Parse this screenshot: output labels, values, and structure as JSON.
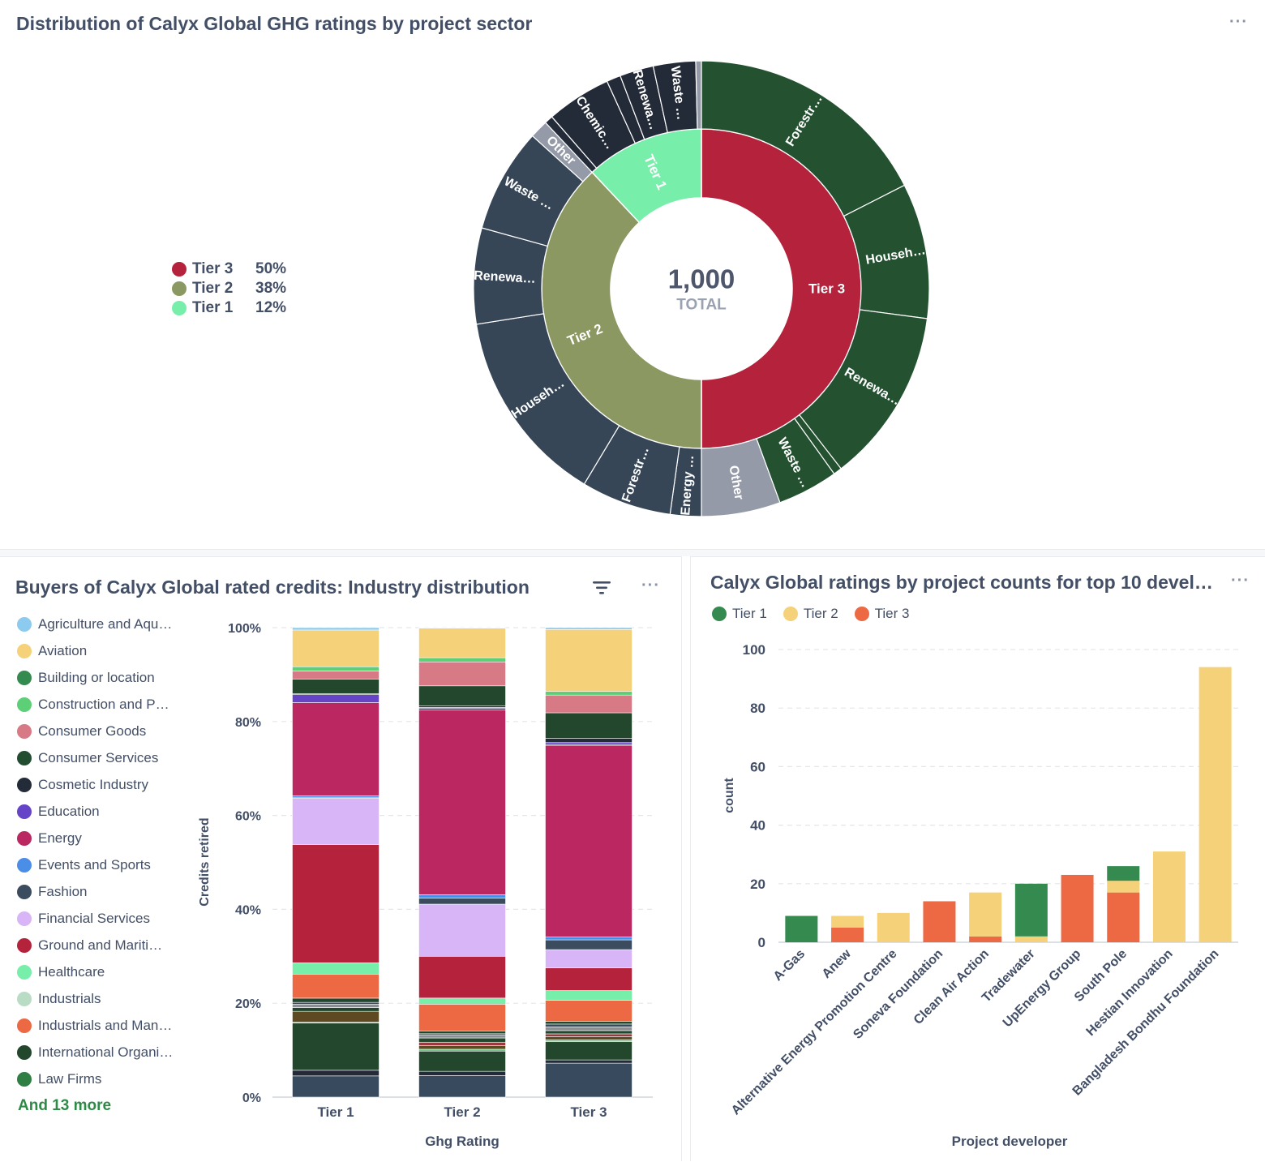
{
  "top": {
    "title": "Distribution of Calyx Global GHG ratings by project sector",
    "menu": "···",
    "legend": [
      {
        "label": "Tier 3",
        "pct": "50%",
        "color": "#b5223c"
      },
      {
        "label": "Tier 2",
        "pct": "38%",
        "color": "#8c9862"
      },
      {
        "label": "Tier 1",
        "pct": "12%",
        "color": "#78eeab"
      }
    ]
  },
  "bottom_left": {
    "title": "Buyers of Calyx Global rated credits: Industry distribution",
    "filter_icon": "filter-icon",
    "menu": "···",
    "legend": [
      {
        "label": "Agriculture and Aqu…",
        "color": "#8ccbef"
      },
      {
        "label": "Aviation",
        "color": "#f5d279"
      },
      {
        "label": "Building or location",
        "color": "#348a4f"
      },
      {
        "label": "Construction and P…",
        "color": "#5ccf77"
      },
      {
        "label": "Consumer Goods",
        "color": "#d87a85"
      },
      {
        "label": "Consumer Services",
        "color": "#234d31"
      },
      {
        "label": "Cosmetic Industry",
        "color": "#232a38"
      },
      {
        "label": "Education",
        "color": "#6644c8"
      },
      {
        "label": "Energy",
        "color": "#ba2761"
      },
      {
        "label": "Events and Sports",
        "color": "#4a8ee8"
      },
      {
        "label": "Fashion",
        "color": "#3b4c5f"
      },
      {
        "label": "Financial Services",
        "color": "#d8b5f6"
      },
      {
        "label": "Ground and Mariti…",
        "color": "#b5223c"
      },
      {
        "label": "Healthcare",
        "color": "#78eeab"
      },
      {
        "label": "Industrials",
        "color": "#b9dcc5"
      },
      {
        "label": "Industrials and Man…",
        "color": "#ec6944"
      },
      {
        "label": "International Organi…",
        "color": "#22472c"
      },
      {
        "label": "Law Firms",
        "color": "#2f7e44"
      }
    ],
    "more": "And 13 more"
  },
  "bottom_right": {
    "title": "Calyx Global ratings by project counts for top 10 develo…",
    "menu": "···",
    "legend": [
      {
        "label": "Tier 1",
        "color": "#348a4f"
      },
      {
        "label": "Tier 2",
        "color": "#f5d279"
      },
      {
        "label": "Tier 3",
        "color": "#ec6944"
      }
    ]
  },
  "chart_data": [
    {
      "type": "sunburst",
      "title": "Distribution of Calyx Global GHG ratings by project sector",
      "center_value": "1,000",
      "center_label": "TOTAL",
      "inner": [
        {
          "label": "Tier 3",
          "value": 50,
          "color": "#b5223c"
        },
        {
          "label": "Tier 2",
          "value": 38,
          "color": "#8c9862"
        },
        {
          "label": "Tier 1",
          "value": 12,
          "color": "#78eeab"
        }
      ],
      "outer": [
        {
          "parent": "Tier 3",
          "label": "Forestr…",
          "value": 17.5,
          "color": "#245231"
        },
        {
          "parent": "Tier 3",
          "label": "Househ…",
          "value": 9.6,
          "color": "#245231"
        },
        {
          "parent": "Tier 3",
          "label": "Renewa…",
          "value": 12.4,
          "color": "#245231"
        },
        {
          "parent": "Tier 3",
          "label": "",
          "value": 0.6,
          "color": "#245231"
        },
        {
          "parent": "Tier 3",
          "label": "Waste …",
          "value": 4.3,
          "color": "#245231"
        },
        {
          "parent": "Tier 3",
          "label": "Other",
          "value": 5.6,
          "color": "#949aa8"
        },
        {
          "parent": "Tier 2",
          "label": "Energy …",
          "value": 2.2,
          "color": "#364657"
        },
        {
          "parent": "Tier 2",
          "label": "Forestr…",
          "value": 6.4,
          "color": "#364657"
        },
        {
          "parent": "Tier 2",
          "label": "Househ…",
          "value": 13.9,
          "color": "#364657"
        },
        {
          "parent": "Tier 2",
          "label": "Renewa…",
          "value": 6.8,
          "color": "#364657"
        },
        {
          "parent": "Tier 2",
          "label": "Waste …",
          "value": 7.4,
          "color": "#364657"
        },
        {
          "parent": "Tier 2",
          "label": "Other",
          "value": 1.3,
          "color": "#949aa8"
        },
        {
          "parent": "Tier 1",
          "label": "",
          "value": 0.6,
          "color": "#232a38"
        },
        {
          "parent": "Tier 1",
          "label": "Chemic…",
          "value": 4.6,
          "color": "#232a38"
        },
        {
          "parent": "Tier 1",
          "label": "",
          "value": 1.0,
          "color": "#232a38"
        },
        {
          "parent": "Tier 1",
          "label": "Renewa…",
          "value": 2.4,
          "color": "#232a38"
        },
        {
          "parent": "Tier 1",
          "label": "Waste …",
          "value": 3.0,
          "color": "#232a38"
        },
        {
          "parent": "Tier 1",
          "label": "",
          "value": 0.4,
          "color": "#949aa8"
        }
      ]
    },
    {
      "type": "bar",
      "stacked": "percent",
      "title": "Buyers of Calyx Global rated credits: Industry distribution",
      "xlabel": "Ghg Rating",
      "ylabel": "Credits retired",
      "categories": [
        "Tier 1",
        "Tier 2",
        "Tier 3"
      ],
      "y_ticks": [
        "0%",
        "20%",
        "40%",
        "60%",
        "80%",
        "100%"
      ],
      "grid": true,
      "segments": [
        {
          "color": "#374a5e",
          "values": [
            4.5,
            4.6,
            7.3
          ]
        },
        {
          "color": "#232a38",
          "values": [
            1.2,
            0.9,
            0.7
          ]
        },
        {
          "color": "#22472c",
          "values": [
            10.0,
            4.3,
            3.9
          ]
        },
        {
          "color": "#5ccf77",
          "values": [
            0.2,
            0.4,
            0.4
          ]
        },
        {
          "color": "#5e4a22",
          "values": [
            2.3,
            0.8,
            0.7
          ]
        },
        {
          "color": "#9a3a40",
          "values": [
            0.0,
            0.7,
            0.6
          ]
        },
        {
          "color": "#22472c",
          "values": [
            0.8,
            0.9,
            0.7
          ]
        },
        {
          "color": "#8a8f96",
          "values": [
            0.7,
            0.6,
            0.8
          ]
        },
        {
          "color": "#374a5e",
          "values": [
            0.4,
            0.3,
            0.6
          ]
        },
        {
          "color": "#22472c",
          "values": [
            0.9,
            0.6,
            0.6
          ]
        },
        {
          "color": "#ec6944",
          "values": [
            5.1,
            5.7,
            4.5
          ]
        },
        {
          "color": "#78eeab",
          "values": [
            2.4,
            1.3,
            2.1
          ]
        },
        {
          "color": "#b5223c",
          "values": [
            25.1,
            8.9,
            4.9
          ]
        },
        {
          "color": "#d8b5f6",
          "values": [
            9.8,
            11.1,
            3.9
          ]
        },
        {
          "color": "#3b4c5f",
          "values": [
            0.2,
            1.3,
            2.1
          ]
        },
        {
          "color": "#4a8ee8",
          "values": [
            0.3,
            0.7,
            0.6
          ]
        },
        {
          "color": "#ba2761",
          "values": [
            19.8,
            39.4,
            41.2
          ]
        },
        {
          "color": "#232a38",
          "values": [
            0.0,
            0.3,
            0.2
          ]
        },
        {
          "color": "#6644c8",
          "values": [
            1.7,
            0.2,
            0.4
          ]
        },
        {
          "color": "#232a38",
          "values": [
            0.2,
            0.3,
            0.9
          ]
        },
        {
          "color": "#22472c",
          "values": [
            3.1,
            4.3,
            5.5
          ]
        },
        {
          "color": "#d87a85",
          "values": [
            1.7,
            5.1,
            3.8
          ]
        },
        {
          "color": "#5ccf77",
          "values": [
            0.9,
            0.9,
            0.8
          ]
        },
        {
          "color": "#f5d279",
          "values": [
            7.8,
            6.3,
            13.3
          ]
        },
        {
          "color": "#8ccbef",
          "values": [
            0.5,
            0.1,
            0.4
          ]
        }
      ]
    },
    {
      "type": "bar",
      "stacked": true,
      "title": "Calyx Global ratings by project counts for top 10 develo…",
      "xlabel": "Project developer",
      "ylabel": "count",
      "ylim": [
        0,
        100
      ],
      "y_ticks": [
        0,
        20,
        40,
        60,
        80,
        100
      ],
      "grid": true,
      "legend_position": "top-left",
      "categories": [
        "A-Gas",
        "Anew",
        "Alternative Energy Promotion Centre",
        "Soneva Foundation",
        "Clean Air Action",
        "Tradewater",
        "UpEnergy Group",
        "South Pole",
        "Hestian Innovation",
        "Bangladesh Bondhu Foundation"
      ],
      "series": [
        {
          "name": "Tier 3",
          "color": "#ec6944",
          "values": [
            0,
            5,
            0,
            14,
            2,
            0,
            23,
            17,
            0,
            0
          ]
        },
        {
          "name": "Tier 2",
          "color": "#f5d279",
          "values": [
            0,
            4,
            10,
            0,
            15,
            2,
            0,
            4,
            31,
            94
          ]
        },
        {
          "name": "Tier 1",
          "color": "#348a4f",
          "values": [
            9,
            0,
            0,
            0,
            0,
            18,
            0,
            5,
            0,
            0
          ]
        }
      ]
    }
  ]
}
